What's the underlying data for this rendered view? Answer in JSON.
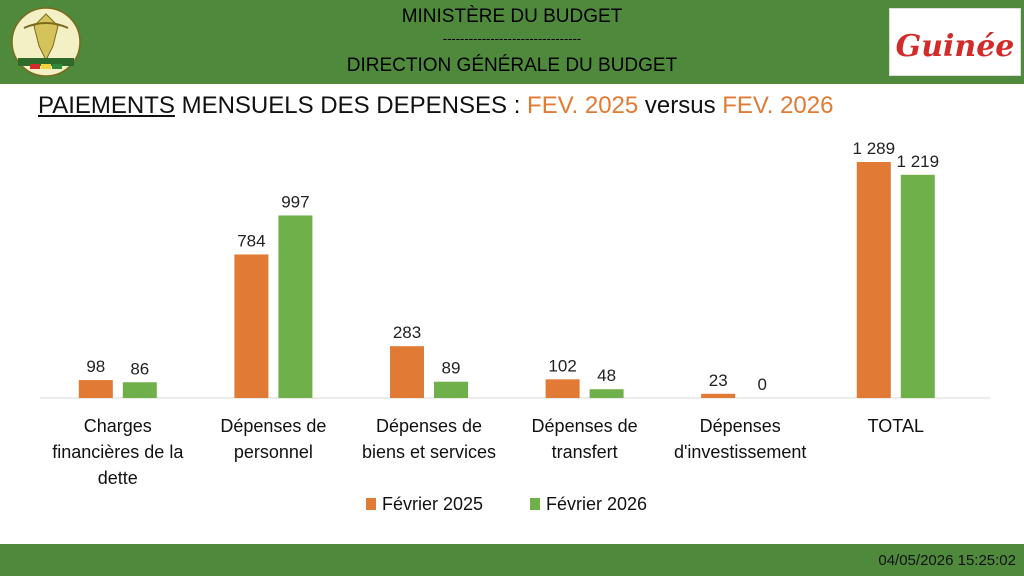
{
  "header": {
    "line1": "MINISTÈRE DU BUDGET",
    "line2": "--------------------------------",
    "line3": "DIRECTION GÉNÉRALE DU BUDGET",
    "emblem_text": [
      "TRAVAIL",
      "JUSTICE",
      "SOLIDARITÉ"
    ],
    "brand_text": "Guinée"
  },
  "title": {
    "part1": "PAIEMENTS",
    "part2": " MENSUELS DES DEPENSES : ",
    "part3": "FEV. 2025",
    "part4": " versus ",
    "part5": "FEV. 2026"
  },
  "colors": {
    "header_green": "#4f8a3c",
    "series_2025": "#e07a34",
    "series_2026": "#6fb04a",
    "accent": "#e07a34"
  },
  "chart_data": {
    "type": "bar",
    "categories": [
      [
        "Charges",
        "financières de la",
        "dette"
      ],
      [
        "Dépenses de",
        "personnel"
      ],
      [
        "Dépenses de",
        "biens et services"
      ],
      [
        "Dépenses de",
        "transfert"
      ],
      [
        "Dépenses",
        "d'investissement"
      ],
      [
        "TOTAL"
      ]
    ],
    "series": [
      {
        "name": "Février 2025",
        "values": [
          98,
          784,
          283,
          102,
          23,
          1289
        ],
        "labels": [
          "98",
          "784",
          "283",
          "102",
          "23",
          "1 289"
        ]
      },
      {
        "name": "Février 2026",
        "values": [
          86,
          997,
          89,
          48,
          0,
          1219
        ],
        "labels": [
          "86",
          "997",
          "89",
          "48",
          "0",
          "1 219"
        ]
      }
    ],
    "ylim": [
      0,
      1289
    ],
    "grid": false,
    "legend": "bottom"
  },
  "footer": {
    "timestamp": "04/05/2026 15:25:02"
  }
}
